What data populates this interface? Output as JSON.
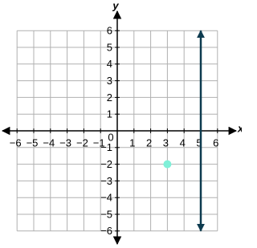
{
  "chart_data": {
    "type": "coordinate-plane",
    "x_label": "x",
    "y_label": "y",
    "origin_label": "0",
    "xlim": [
      -6,
      6
    ],
    "ylim": [
      -6,
      6
    ],
    "xticks": [
      {
        "value": -6,
        "label": "−6"
      },
      {
        "value": -5,
        "label": "−5"
      },
      {
        "value": -4,
        "label": "−4"
      },
      {
        "value": -3,
        "label": "−3"
      },
      {
        "value": -2,
        "label": "−2"
      },
      {
        "value": -1,
        "label": "−1"
      },
      1,
      2,
      3,
      4,
      5,
      6
    ],
    "yticks": [
      {
        "value": -6,
        "label": "−6"
      },
      {
        "value": -5,
        "label": "−5"
      },
      {
        "value": -4,
        "label": "−4"
      },
      {
        "value": -3,
        "label": "−3"
      },
      {
        "value": -2,
        "label": "−2"
      },
      {
        "value": -1,
        "label": "−1"
      },
      1,
      2,
      3,
      4,
      5,
      6
    ],
    "grid": true,
    "series": [
      {
        "type": "line",
        "color": "#0d3b4f",
        "x": [
          5,
          5
        ],
        "values": [
          -6,
          6
        ],
        "arrows": true
      },
      {
        "type": "scatter",
        "color": "#7ff0d8",
        "x": [
          3
        ],
        "values": [
          -2
        ]
      }
    ]
  }
}
